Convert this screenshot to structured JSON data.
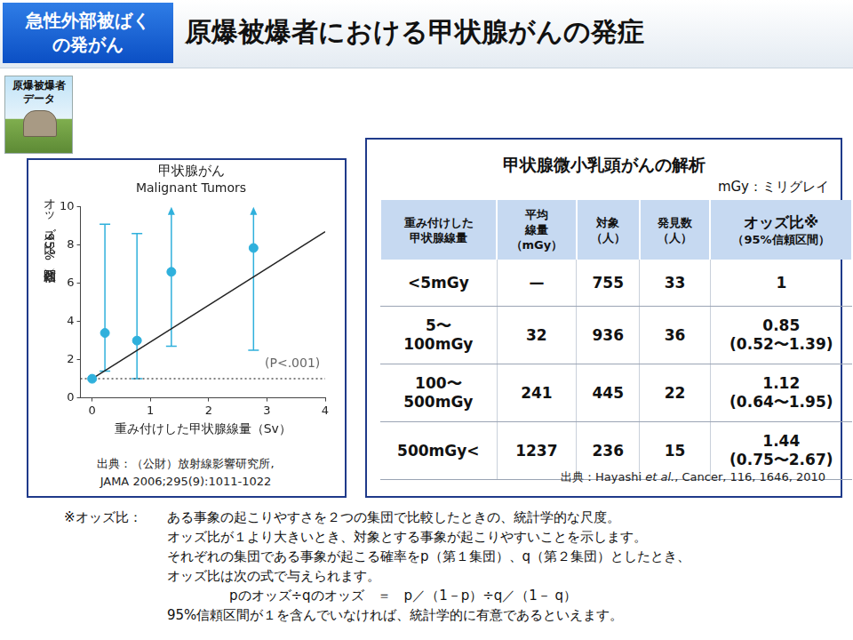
{
  "header": {
    "badge": [
      "急性外部被ばく",
      "の発がん"
    ],
    "title": "原爆被爆者における甲状腺がんの発症",
    "icon_label": [
      "原爆被爆者",
      "データ"
    ]
  },
  "chart_data": {
    "type": "scatter",
    "title": "甲状腺がん",
    "subtitle": "Malignant Tumors",
    "x_label": "重み付けした甲状腺線量（Sv）",
    "y_label": "オッズ比（95%信頼区間）",
    "annotation": "(P<.001)",
    "xlim": [
      -0.2,
      4
    ],
    "xticks": [
      0,
      1,
      2,
      3,
      4
    ],
    "ylim": [
      0,
      10
    ],
    "yticks": [
      0,
      2,
      4,
      6,
      8,
      10
    ],
    "grid": false,
    "series": [
      {
        "type": "scatter",
        "color": "#2fb0dc",
        "marker": "circle",
        "x": [
          0,
          0.22,
          0.77,
          1.36,
          2.77
        ],
        "values": [
          1,
          3.4,
          3.0,
          6.6,
          7.85
        ],
        "error_low": [
          null,
          1.4,
          1.0,
          2.7,
          2.5
        ],
        "error_high": [
          null,
          9.1,
          8.6,
          null,
          null
        ]
      },
      {
        "type": "line",
        "color": "#222222",
        "line_style": "solid",
        "x": [
          0,
          4
        ],
        "values": [
          1,
          8.7
        ]
      },
      {
        "type": "line",
        "color": "#555555",
        "line_style": "dotted",
        "x": [
          -0.2,
          4
        ],
        "values": [
          1,
          1
        ]
      }
    ],
    "source": [
      "出典：（公財）放射線影響研究所,",
      "JAMA 2006;295(9):1011-1022"
    ]
  },
  "table": {
    "title": "甲状腺微小乳頭がんの解析",
    "unit_note": "mGy：ミリグレイ",
    "header": [
      [
        "重み付けした",
        "甲状腺線量"
      ],
      [
        "平均",
        "線量",
        "（mGy）"
      ],
      [
        "対象",
        "（人）"
      ],
      [
        "発見数",
        "（人）"
      ],
      [
        "オッズ比※",
        "（95%信頼区間）"
      ]
    ],
    "rows": [
      [
        [
          "<5mGy"
        ],
        "—",
        755,
        33,
        [
          "1"
        ]
      ],
      [
        [
          "5〜",
          "100mGy"
        ],
        32,
        936,
        36,
        [
          "0.85",
          "(0.52〜1.39)"
        ]
      ],
      [
        [
          "100〜",
          "500mGy"
        ],
        241,
        445,
        22,
        [
          "1.12",
          "(0.64〜1.95)"
        ]
      ],
      [
        [
          "500mGy<"
        ],
        1237,
        236,
        15,
        [
          "1.44",
          "(0.75〜2.67)"
        ]
      ]
    ],
    "source": {
      "prefix": "出典：Hayashi ",
      "italic": "et al.",
      "suffix": ",  Cancer, 116, 1646, 2010"
    }
  },
  "footnote": {
    "label": "※オッズ比：",
    "lines": [
      "ある事象の起こりやすさを２つの集団で比較したときの、統計学的な尺度。",
      "オッズ比が１より大きいとき、対象とする事象が起こりやすいことを示します。",
      "それぞれの集団である事象が起こる確率をp（第１集団）、q（第２集団）としたとき、",
      "オッズ比は次の式で与えられます。",
      "pのオッズ÷qのオッズ　＝　p／（1－p）÷q／（1－ q）",
      "95%信頼区間が１を含んでいなければ、統計学的に有意であるといえます。"
    ]
  }
}
